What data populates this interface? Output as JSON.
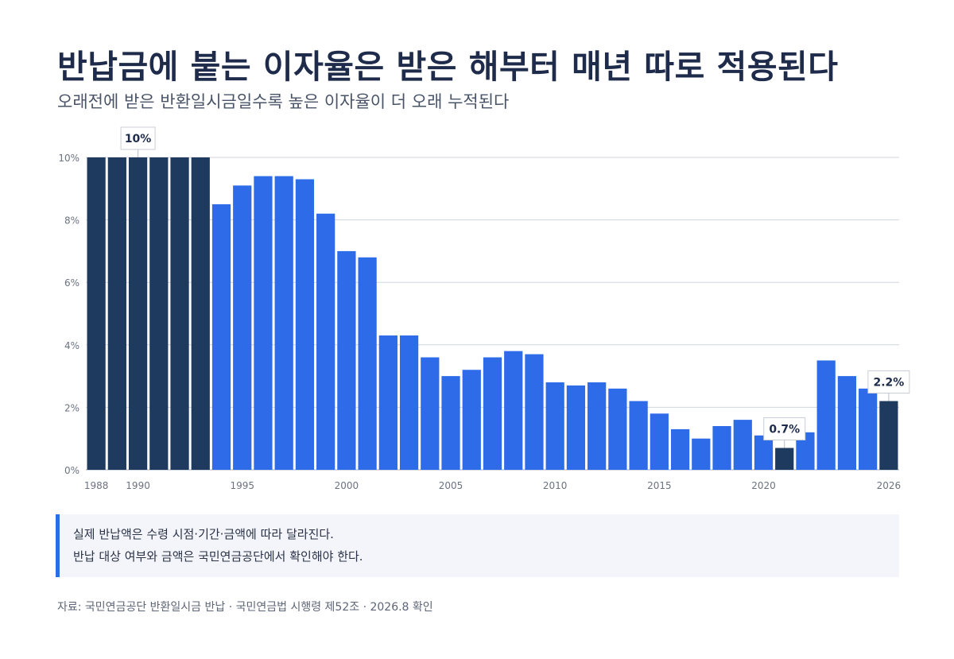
{
  "header": {
    "title": "반납금에 붙는 이자율은 받은 해부터 매년 따로 적용된다",
    "subtitle": "오래전에 받은 반환일시금일수록 높은 이자율이 더 오래 누적된다"
  },
  "colors": {
    "highlight": "#1e3a5f",
    "bar": "#2e6be8",
    "grid": "#d0d4e0",
    "note_accent": "#2e6be8"
  },
  "chart_data": {
    "type": "bar",
    "title": "",
    "xlabel": "",
    "ylabel": "",
    "ylim": [
      0,
      10
    ],
    "y_ticks": [
      "0%",
      "2%",
      "4%",
      "6%",
      "8%",
      "10%"
    ],
    "x_tick_labels": [
      "1988",
      "1990",
      "1995",
      "2000",
      "2005",
      "2010",
      "2015",
      "2020",
      "2026"
    ],
    "grid": true,
    "categories": [
      1988,
      1989,
      1990,
      1991,
      1992,
      1993,
      1994,
      1995,
      1996,
      1997,
      1998,
      1999,
      2000,
      2001,
      2002,
      2003,
      2004,
      2005,
      2006,
      2007,
      2008,
      2009,
      2010,
      2011,
      2012,
      2013,
      2014,
      2015,
      2016,
      2017,
      2018,
      2019,
      2020,
      2021,
      2022,
      2023,
      2024,
      2025,
      2026
    ],
    "values": [
      10,
      10,
      10,
      10,
      10,
      10,
      8.5,
      9.1,
      9.4,
      9.4,
      9.3,
      8.2,
      7.0,
      6.8,
      4.3,
      4.3,
      3.6,
      3.0,
      3.2,
      3.6,
      3.8,
      3.7,
      2.8,
      2.7,
      2.8,
      2.6,
      2.2,
      1.8,
      1.3,
      1.0,
      1.4,
      1.6,
      1.1,
      0.7,
      1.2,
      3.5,
      3.0,
      2.6,
      2.2
    ],
    "highlighted": [
      1988,
      1989,
      1990,
      1991,
      1992,
      1993,
      2021,
      2026
    ],
    "annotations": [
      {
        "year": 1990,
        "label": "10%"
      },
      {
        "year": 2021,
        "label": "0.7%"
      },
      {
        "year": 2026,
        "label": "2.2%"
      }
    ]
  },
  "note": {
    "line1": "실제 반납액은 수령 시점·기간·금액에 따라 달라진다.",
    "line2": "반납 대상 여부와 금액은 국민연금공단에서 확인해야 한다."
  },
  "source": "자료: 국민연금공단 반환일시금 반납 · 국민연금법 시행령 제52조 · 2026.8 확인"
}
